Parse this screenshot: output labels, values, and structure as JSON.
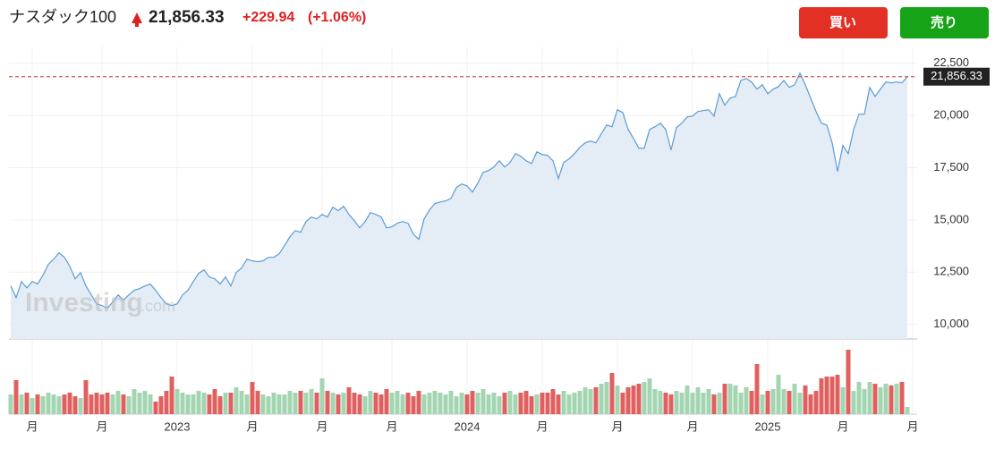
{
  "header": {
    "title": "ナスダック100",
    "price": "21,856.33",
    "change": "+229.94",
    "change_pct": "(+1.06%)",
    "buy": "買い",
    "sell": "売り",
    "watermark": "Investing",
    "watermark_suffix": ".com"
  },
  "chart_data": {
    "type": "line",
    "categories": [
      null,
      null,
      null,
      null,
      "月",
      null,
      null,
      null,
      null,
      null,
      null,
      null,
      null,
      null,
      null,
      null,
      null,
      "月",
      null,
      null,
      null,
      null,
      null,
      null,
      null,
      null,
      null,
      null,
      null,
      null,
      null,
      "2023",
      null,
      null,
      null,
      null,
      null,
      null,
      null,
      null,
      null,
      null,
      null,
      null,
      null,
      "月",
      null,
      null,
      null,
      null,
      null,
      null,
      null,
      null,
      null,
      null,
      null,
      null,
      "月",
      null,
      null,
      null,
      null,
      null,
      null,
      null,
      null,
      null,
      null,
      null,
      null,
      "月",
      null,
      null,
      null,
      null,
      null,
      null,
      null,
      null,
      null,
      null,
      null,
      null,
      null,
      "2024",
      null,
      null,
      null,
      null,
      null,
      null,
      null,
      null,
      null,
      null,
      null,
      null,
      null,
      "月",
      null,
      null,
      null,
      null,
      null,
      null,
      null,
      null,
      null,
      null,
      null,
      null,
      null,
      "月",
      null,
      null,
      null,
      null,
      null,
      null,
      null,
      null,
      null,
      null,
      null,
      null,
      null,
      "月",
      null,
      null,
      null,
      null,
      null,
      null,
      null,
      null,
      null,
      null,
      null,
      null,
      null,
      "2025",
      null,
      null,
      null,
      null,
      null,
      null,
      null,
      null,
      null,
      null,
      null,
      null,
      null,
      "月",
      null,
      null,
      null,
      null,
      null,
      null,
      null,
      null,
      null,
      null,
      null,
      null,
      "月"
    ],
    "series": [
      {
        "name": "ナスダック100",
        "color": "#5b9bd5",
        "fill": "#e4edf6",
        "values": [
          11840,
          11280,
          12050,
          11750,
          12050,
          11930,
          12350,
          12870,
          13120,
          13420,
          13210,
          12780,
          12180,
          12480,
          11840,
          11410,
          10980,
          10900,
          10770,
          11070,
          11410,
          11160,
          11410,
          11630,
          11710,
          11840,
          11930,
          11630,
          11280,
          10980,
          10900,
          10980,
          11410,
          11630,
          12050,
          12440,
          12610,
          12270,
          12180,
          11930,
          12270,
          11840,
          12480,
          12700,
          13120,
          13040,
          13000,
          13040,
          13210,
          13210,
          13380,
          13770,
          14190,
          14490,
          14410,
          14920,
          15140,
          15050,
          15260,
          15140,
          15610,
          15440,
          15650,
          15260,
          14960,
          14620,
          14920,
          15350,
          15260,
          15140,
          14620,
          14670,
          14840,
          14920,
          14840,
          14320,
          14070,
          15050,
          15480,
          15780,
          15860,
          15910,
          16030,
          16550,
          16720,
          16630,
          16330,
          16760,
          17280,
          17360,
          17530,
          17830,
          17530,
          17750,
          18170,
          18050,
          17830,
          17700,
          18260,
          18130,
          18090,
          17830,
          16980,
          17750,
          17920,
          18170,
          18470,
          18690,
          18770,
          18690,
          19120,
          19540,
          19460,
          20270,
          20140,
          19330,
          18900,
          18430,
          18430,
          19330,
          19460,
          19630,
          19330,
          18350,
          19420,
          19630,
          19930,
          19970,
          20190,
          20230,
          20270,
          19970,
          21040,
          20490,
          20830,
          20910,
          21680,
          21770,
          21600,
          21260,
          21470,
          21040,
          21260,
          21380,
          21680,
          21340,
          21470,
          22030,
          21470,
          20830,
          20190,
          19630,
          19540,
          18690,
          17320,
          18560,
          18170,
          19330,
          20060,
          20060,
          21340,
          20910,
          21260,
          21600,
          21560,
          21600,
          21560,
          21856.33,
          null
        ]
      },
      {
        "axis": "y2",
        "up_color": "#a3d6b0",
        "down_color": "#e06060",
        "values": [
          22,
          38,
          22,
          24,
          18,
          22,
          20,
          24,
          22,
          20,
          22,
          24,
          20,
          18,
          38,
          22,
          24,
          22,
          24,
          22,
          26,
          22,
          20,
          28,
          24,
          26,
          22,
          14,
          20,
          26,
          42,
          28,
          24,
          22,
          22,
          26,
          24,
          22,
          28,
          20,
          24,
          24,
          30,
          26,
          22,
          36,
          26,
          22,
          20,
          24,
          22,
          22,
          26,
          24,
          26,
          24,
          28,
          24,
          40,
          26,
          24,
          22,
          24,
          30,
          24,
          22,
          20,
          26,
          24,
          22,
          28,
          24,
          26,
          22,
          24,
          20,
          26,
          22,
          24,
          26,
          24,
          22,
          26,
          20,
          24,
          22,
          26,
          24,
          28,
          22,
          24,
          20,
          24,
          26,
          22,
          24,
          26,
          20,
          22,
          24,
          24,
          28,
          22,
          26,
          22,
          24,
          26,
          30,
          28,
          30,
          34,
          36,
          46,
          32,
          24,
          30,
          32,
          34,
          36,
          40,
          28,
          26,
          24,
          22,
          26,
          24,
          32,
          24,
          30,
          24,
          28,
          22,
          24,
          34,
          34,
          32,
          24,
          30,
          26,
          56,
          22,
          26,
          28,
          44,
          28,
          26,
          34,
          24,
          32,
          22,
          26,
          40,
          42,
          42,
          44,
          30,
          72,
          26,
          36,
          28,
          36,
          34,
          30,
          34,
          32,
          34,
          36,
          8,
          null
        ]
      }
    ],
    "ylim": [
      9300,
      23300
    ],
    "yticks": [
      {
        "value": 10000,
        "label": "10,000"
      },
      {
        "value": 12500,
        "label": "12,500"
      },
      {
        "value": 15000,
        "label": "15,000"
      },
      {
        "value": 17500,
        "label": "17,500"
      },
      {
        "value": 20000,
        "label": "20,000"
      },
      {
        "value": 22500,
        "label": "22,500"
      }
    ],
    "y2lim": [
      0,
      83
    ],
    "grid": true
  }
}
